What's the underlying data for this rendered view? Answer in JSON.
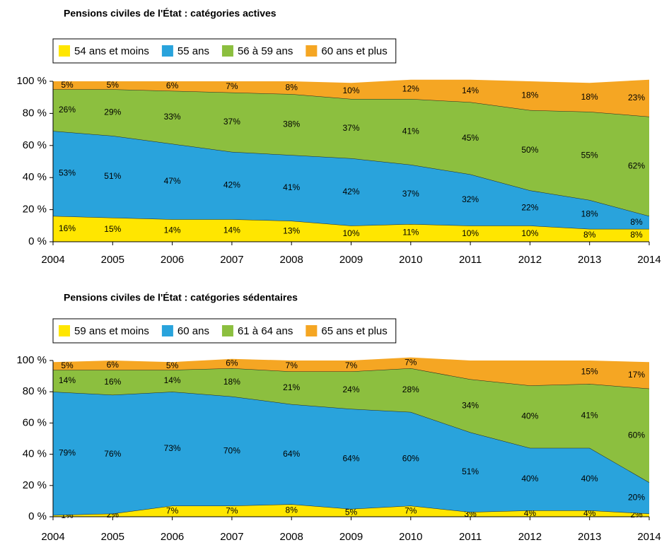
{
  "chart_data": [
    {
      "type": "area",
      "title": "Pensions civiles de l'État : catégories actives",
      "categories": [
        "2004",
        "2005",
        "2006",
        "2007",
        "2008",
        "2009",
        "2010",
        "2011",
        "2012",
        "2013",
        "2014"
      ],
      "ylim": [
        0,
        100
      ],
      "yticks": [
        {
          "value": 0,
          "label": "0 %"
        },
        {
          "value": 20,
          "label": "20 %"
        },
        {
          "value": 40,
          "label": "40 %"
        },
        {
          "value": 60,
          "label": "60 %"
        },
        {
          "value": 80,
          "label": "80 %"
        },
        {
          "value": 100,
          "label": "100 %"
        }
      ],
      "series": [
        {
          "name": "54 ans et moins",
          "color": "#ffe600",
          "values": [
            16,
            15,
            14,
            14,
            13,
            10,
            11,
            10,
            10,
            8,
            8
          ],
          "value_labels": [
            "16%",
            "15%",
            "14%",
            "14%",
            "13%",
            "10%",
            "11%",
            "10%",
            "10%",
            "8%",
            "8%"
          ]
        },
        {
          "name": "55 ans",
          "color": "#29a3dc",
          "values": [
            53,
            51,
            47,
            42,
            41,
            42,
            37,
            32,
            22,
            18,
            8
          ],
          "value_labels": [
            "53%",
            "51%",
            "47%",
            "42%",
            "41%",
            "42%",
            "37%",
            "32%",
            "22%",
            "18%",
            "8%"
          ]
        },
        {
          "name": "56 à 59 ans",
          "color": "#8cbf3f",
          "values": [
            26,
            29,
            33,
            37,
            38,
            37,
            41,
            45,
            50,
            55,
            62
          ],
          "value_labels": [
            "26%",
            "29%",
            "33%",
            "37%",
            "38%",
            "37%",
            "41%",
            "45%",
            "50%",
            "55%",
            "62%"
          ]
        },
        {
          "name": "60 ans et plus",
          "color": "#f5a623",
          "values": [
            5,
            5,
            6,
            7,
            8,
            10,
            12,
            14,
            18,
            18,
            23
          ],
          "value_labels": [
            "5%",
            "5%",
            "6%",
            "7%",
            "8%",
            "10%",
            "12%",
            "14%",
            "18%",
            "18%",
            "23%"
          ]
        }
      ]
    },
    {
      "type": "area",
      "title": "Pensions civiles de l'État : catégories sédentaires",
      "categories": [
        "2004",
        "2005",
        "2006",
        "2007",
        "2008",
        "2009",
        "2010",
        "2011",
        "2012",
        "2013",
        "2014"
      ],
      "ylim": [
        0,
        100
      ],
      "yticks": [
        {
          "value": 0,
          "label": "0 %"
        },
        {
          "value": 20,
          "label": "20 %"
        },
        {
          "value": 40,
          "label": "40 %"
        },
        {
          "value": 60,
          "label": "60 %"
        },
        {
          "value": 80,
          "label": "80 %"
        },
        {
          "value": 100,
          "label": "100 %"
        }
      ],
      "series": [
        {
          "name": "59 ans et moins",
          "color": "#ffe600",
          "values": [
            1,
            2,
            7,
            7,
            8,
            5,
            7,
            3,
            4,
            4,
            2
          ],
          "value_labels": [
            "1%",
            "2%",
            "7%",
            "7%",
            "8%",
            "5%",
            "7%",
            "3%",
            "4%",
            "4%",
            "2%"
          ]
        },
        {
          "name": "60 ans",
          "color": "#29a3dc",
          "values": [
            79,
            76,
            73,
            70,
            64,
            64,
            60,
            51,
            40,
            40,
            20
          ],
          "value_labels": [
            "79%",
            "76%",
            "73%",
            "70%",
            "64%",
            "64%",
            "60%",
            "51%",
            "40%",
            "40%",
            "20%"
          ]
        },
        {
          "name": "61 à 64 ans",
          "color": "#8cbf3f",
          "values": [
            14,
            16,
            14,
            18,
            21,
            24,
            28,
            34,
            40,
            41,
            60
          ],
          "value_labels": [
            "14%",
            "16%",
            "14%",
            "18%",
            "21%",
            "24%",
            "28%",
            "34%",
            "40%",
            "41%",
            "60%"
          ]
        },
        {
          "name": "65 ans et plus",
          "color": "#f5a623",
          "values": [
            5,
            6,
            5,
            6,
            7,
            7,
            7,
            12,
            16,
            15,
            17
          ],
          "value_labels": [
            "5%",
            "6%",
            "5%",
            "6%",
            "7%",
            "7%",
            "7%",
            null,
            null,
            "15%",
            "17%"
          ]
        }
      ]
    }
  ]
}
